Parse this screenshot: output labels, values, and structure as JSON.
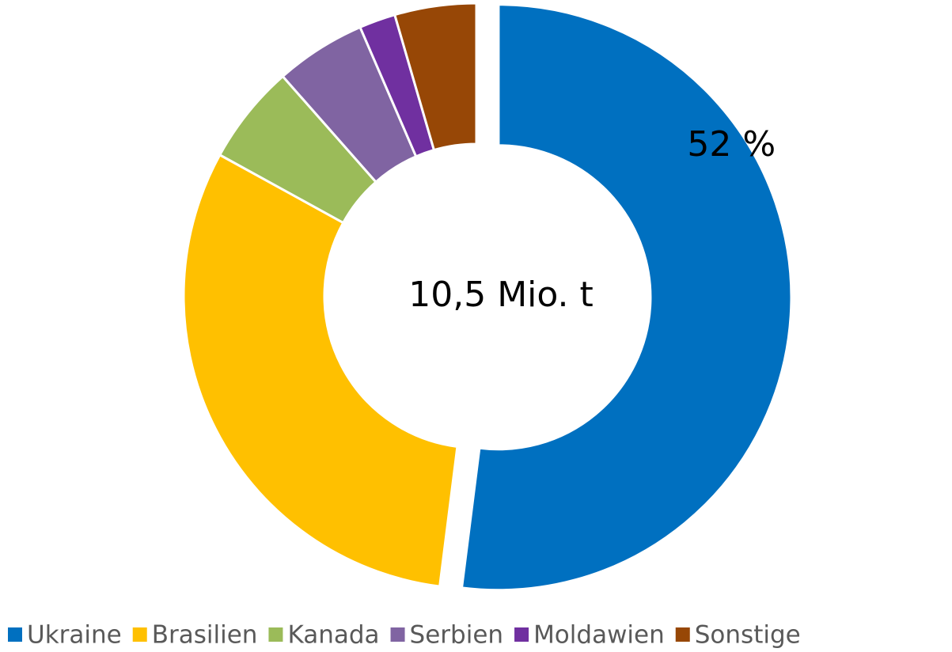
{
  "chart_data": {
    "type": "donut",
    "categories": [
      "Ukraine",
      "Brasilien",
      "Kanada",
      "Serbien",
      "Moldawien",
      "Sonstige"
    ],
    "values": [
      52,
      31,
      5.5,
      5,
      2,
      4.5
    ],
    "value_labels": [
      "52 %",
      null,
      null,
      null,
      null,
      null
    ],
    "colors": [
      "#0070c0",
      "#ffc000",
      "#9bbb59",
      "#8064a2",
      "#7030a0",
      "#974706"
    ],
    "center_label": "10,5 Mio. t",
    "exploded": [
      "Ukraine"
    ],
    "legend": "bottom"
  }
}
